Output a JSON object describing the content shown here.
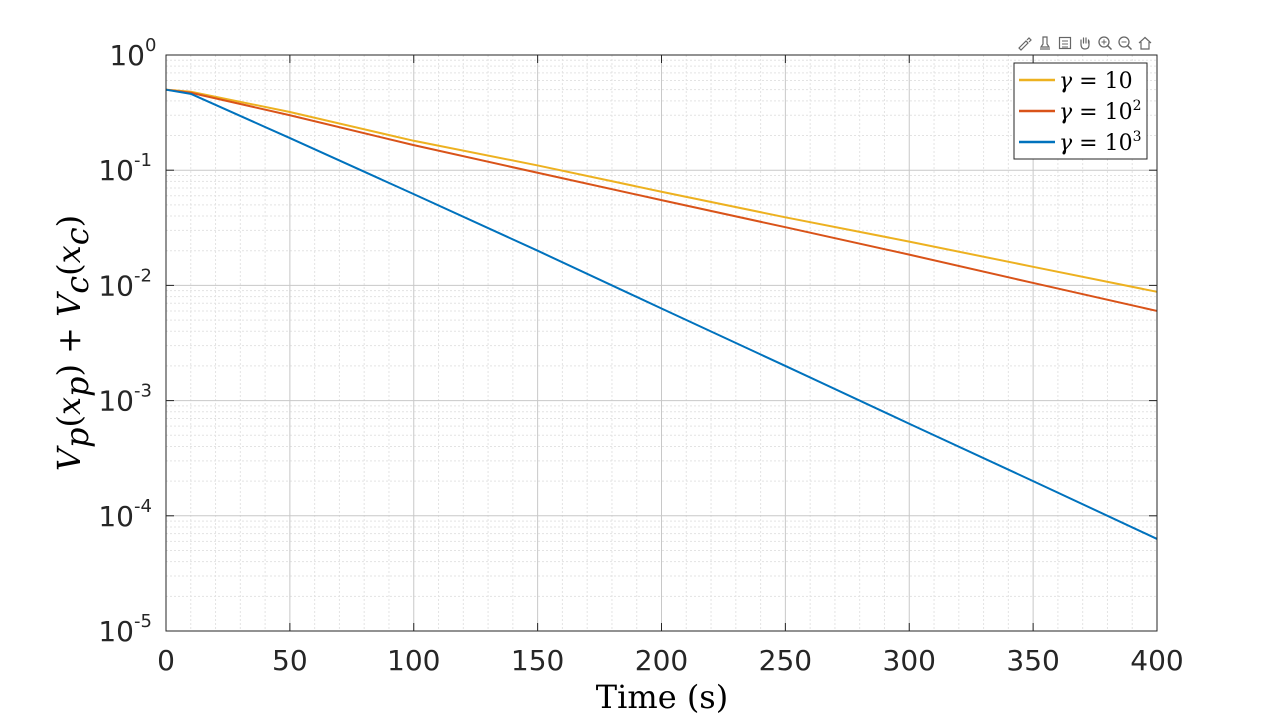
{
  "chart_data": {
    "type": "line",
    "xlabel": "Time (s)",
    "ylabel": "V_p(x_p) + V_c(x_c)",
    "xlim": [
      0,
      400
    ],
    "ylim": [
      1e-05,
      1
    ],
    "yscale": "log",
    "grid": true,
    "minor_grid": true,
    "legend_position": "top-right",
    "x_ticks": [
      0,
      50,
      100,
      150,
      200,
      250,
      300,
      350,
      400
    ],
    "x_tick_labels": [
      "0",
      "50",
      "100",
      "150",
      "200",
      "250",
      "300",
      "350",
      "400"
    ],
    "y_ticks": [
      {
        "value": 1,
        "base": "10",
        "exp": "0"
      },
      {
        "value": 0.1,
        "base": "10",
        "exp": "-1"
      },
      {
        "value": 0.01,
        "base": "10",
        "exp": "-2"
      },
      {
        "value": 0.001,
        "base": "10",
        "exp": "-3"
      },
      {
        "value": 0.0001,
        "base": "10",
        "exp": "-4"
      },
      {
        "value": 1e-05,
        "base": "10",
        "exp": "-5"
      }
    ],
    "series": [
      {
        "name": "γ = 10",
        "color": "#EDB120",
        "x": [
          0,
          10,
          50,
          100,
          150,
          200,
          250,
          300,
          350,
          400
        ],
        "y": [
          0.5,
          0.48,
          0.32,
          0.18,
          0.11,
          0.065,
          0.039,
          0.024,
          0.0145,
          0.0088
        ]
      },
      {
        "name": "γ = 10²",
        "color": "#D95319",
        "x": [
          0,
          10,
          50,
          100,
          150,
          200,
          250,
          300,
          350,
          400
        ],
        "y": [
          0.5,
          0.47,
          0.3,
          0.165,
          0.095,
          0.055,
          0.032,
          0.0185,
          0.0105,
          0.006
        ]
      },
      {
        "name": "γ = 10³",
        "color": "#0072BD",
        "x": [
          0,
          10,
          50,
          100,
          150,
          200,
          250,
          300,
          350,
          400
        ],
        "y": [
          0.5,
          0.46,
          0.19,
          0.062,
          0.02,
          0.0063,
          0.002,
          0.00063,
          0.0002,
          6.3e-05
        ]
      }
    ],
    "legend": [
      {
        "symbol": "γ",
        "rest": " = 10",
        "sup": "",
        "color": "#EDB120"
      },
      {
        "symbol": "γ",
        "rest": " = 10",
        "sup": "2",
        "color": "#D95319"
      },
      {
        "symbol": "γ",
        "rest": " = 10",
        "sup": "3",
        "color": "#0072BD"
      }
    ]
  },
  "toolbar": {
    "icons": [
      "brush-icon",
      "data-tip-icon",
      "legend-icon",
      "pan-icon",
      "zoom-in-icon",
      "zoom-out-icon",
      "home-icon"
    ]
  }
}
